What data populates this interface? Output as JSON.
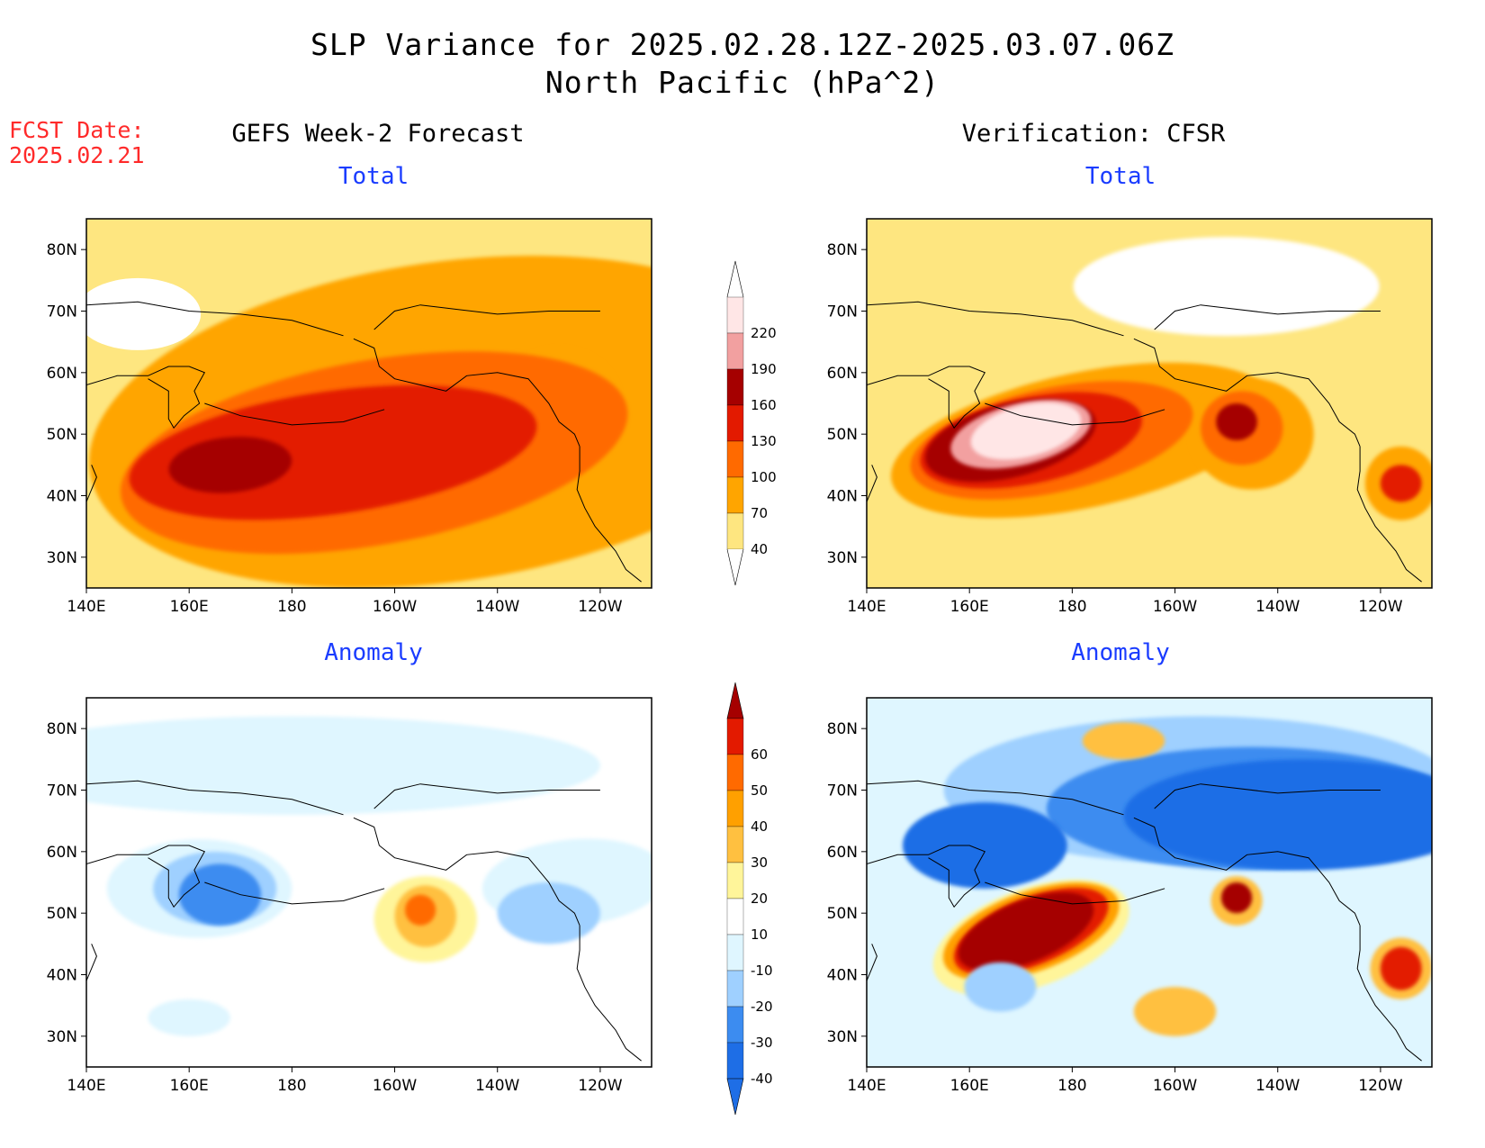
{
  "header": {
    "title_line1": "SLP Variance for 2025.02.28.12Z-2025.03.07.06Z",
    "title_line2": "North Pacific (hPa^2)",
    "fcst_label": "FCST Date:",
    "fcst_date": "2025.02.21"
  },
  "columns": {
    "left_title": "GEFS Week-2 Forecast",
    "right_title": "Verification: CFSR"
  },
  "panels": [
    {
      "id": "gefs-total",
      "subtitle": "Total"
    },
    {
      "id": "cfsr-total",
      "subtitle": "Total"
    },
    {
      "id": "gefs-anomaly",
      "subtitle": "Anomaly"
    },
    {
      "id": "cfsr-anomaly",
      "subtitle": "Anomaly"
    }
  ],
  "axes": {
    "lat_labels": [
      "80N",
      "70N",
      "60N",
      "50N",
      "40N",
      "30N"
    ],
    "lat_values": [
      80,
      70,
      60,
      50,
      40,
      30
    ],
    "lon_labels": [
      "140E",
      "160E",
      "180",
      "160W",
      "140W",
      "120W"
    ],
    "lon_values": [
      140,
      160,
      180,
      200,
      220,
      240
    ],
    "lon_range": [
      140,
      250
    ],
    "lat_range": [
      25,
      85
    ]
  },
  "colorbars": {
    "total": {
      "labels": [
        "40",
        "70",
        "100",
        "130",
        "160",
        "190",
        "220"
      ],
      "colors": [
        "#fee680",
        "#ffa500",
        "#ff6a00",
        "#e31a00",
        "#a50000",
        "#f2a0a0",
        "#ffe6e6"
      ]
    },
    "anomaly": {
      "labels": [
        "-40",
        "-30",
        "-20",
        "-10",
        "10",
        "20",
        "30",
        "40",
        "50",
        "60"
      ],
      "colors": [
        "#1e6ee6",
        "#1e6ee6",
        "#3c8cf0",
        "#9fd0ff",
        "#dff6ff",
        "#ffffff",
        "#fff59a",
        "#ffc040",
        "#ffa000",
        "#ff6a00",
        "#e31a00",
        "#a50000"
      ]
    }
  },
  "palette": {
    "total": [
      "#fee680",
      "#ffa500",
      "#ff6a00",
      "#e31a00",
      "#a50000",
      "#f2a0a0",
      "#ffe6e6"
    ],
    "neg": [
      "#dff6ff",
      "#9fd0ff",
      "#3c8cf0",
      "#1e6ee6"
    ],
    "pos": [
      "#fff59a",
      "#ffc040",
      "#ffa000",
      "#ff6a00",
      "#e31a00",
      "#a50000"
    ]
  }
}
